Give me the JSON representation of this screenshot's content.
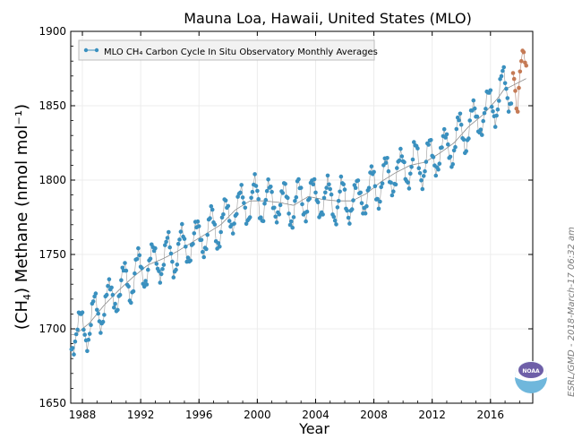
{
  "chart_data": {
    "type": "scatter",
    "title": "Mauna Loa, Hawaii, United States (MLO)",
    "xlabel": "Year",
    "ylabel_prefix": "(CH",
    "ylabel_sub": "4",
    "ylabel_suffix": ") Methane (nmol mol⁻¹)",
    "xlim": [
      1987.2,
      2018.9
    ],
    "ylim": [
      1650,
      1900
    ],
    "x_ticks": [
      1988,
      1992,
      1996,
      2000,
      2004,
      2008,
      2012,
      2016
    ],
    "y_ticks": [
      1650,
      1700,
      1750,
      1800,
      1850,
      1900
    ],
    "legend": {
      "label": "MLO CH₄ Carbon Cycle In Situ Observatory Monthly Averages",
      "position": "top-left"
    },
    "credit": "ESRL/GMD - 2018-March-17 06:32 am",
    "logo_text": "NOAA",
    "colors": {
      "main": "#3a90bf",
      "preliminary": "#c57a55",
      "trend": "#8a8a8a",
      "logo_blue": "#6fb7dc",
      "logo_purple": "#6e5fa8"
    },
    "series": [
      {
        "name": "monthly_averages",
        "anchors_x": [
          1987.5,
          1988.5,
          1989.5,
          1990.5,
          1991.5,
          1992.5,
          1993.5,
          1994.5,
          1995.5,
          1996.5,
          1997.5,
          1998.5,
          1999.5,
          2000.5,
          2001.5,
          2002.5,
          2003.5,
          2004.5,
          2005.5,
          2006.5,
          2007.5,
          2008.5,
          2009.5,
          2010.5,
          2011.5,
          2012.5,
          2013.5,
          2014.5,
          2015.5,
          2016.5,
          2017.0
        ],
        "anchors_trend": [
          1696,
          1704,
          1716,
          1726,
          1735,
          1743,
          1747,
          1752,
          1758,
          1764,
          1770,
          1780,
          1786,
          1786,
          1785,
          1783,
          1789,
          1787,
          1786,
          1786,
          1791,
          1799,
          1805,
          1810,
          1812,
          1818,
          1825,
          1836,
          1844,
          1855,
          1862
        ],
        "seasonal_amplitude": 13,
        "seasonal_phase_year": 0.83,
        "start": 1987.25,
        "end": 2017.45,
        "step": 0.0833333
      },
      {
        "name": "preliminary",
        "x": [
          2017.55,
          2017.62,
          2017.7,
          2017.78,
          2017.87,
          2017.95,
          2018.03,
          2018.12,
          2018.2,
          2018.28,
          2018.37,
          2018.45
        ],
        "y": [
          1872,
          1868,
          1860,
          1848,
          1846,
          1862,
          1873,
          1880,
          1887,
          1886,
          1879,
          1877
        ]
      }
    ]
  }
}
